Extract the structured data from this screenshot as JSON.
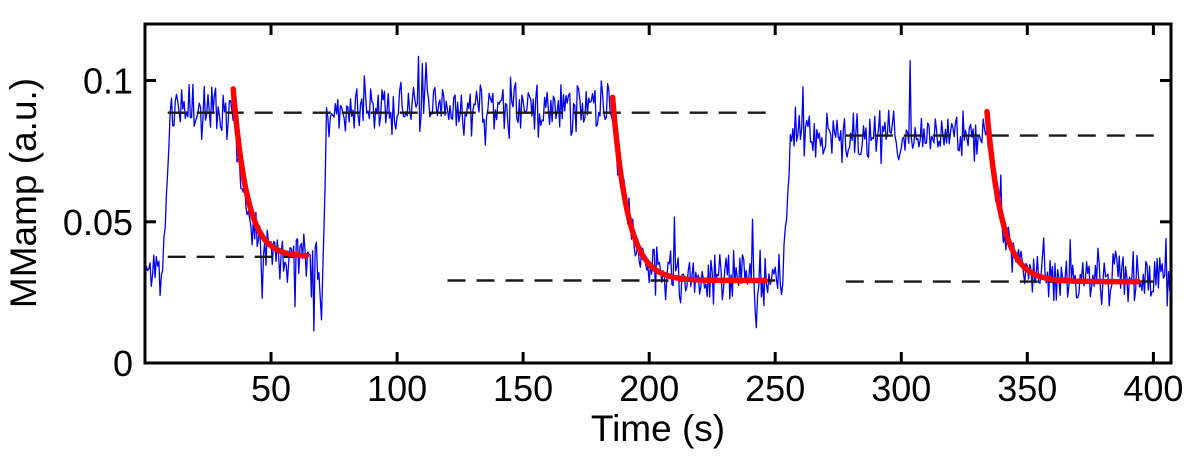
{
  "chart_data": {
    "type": "line",
    "title": "",
    "xlabel": "Time (s)",
    "ylabel": "MMamp (a.u.)",
    "xlim": [
      0,
      407
    ],
    "ylim": [
      0,
      0.12
    ],
    "xticks": [
      50,
      100,
      150,
      200,
      250,
      300,
      350,
      400
    ],
    "yticks": [
      0,
      0.05,
      0.1
    ],
    "ytick_labels": [
      "0",
      "0.05",
      "0.1"
    ],
    "grid": false,
    "legend": "none",
    "colors": {
      "signal": "#0000ee",
      "fit": "#ff0000",
      "dashed": "#1a1a1a",
      "axis": "#000000",
      "background": "#ffffff"
    },
    "signal": {
      "description": "Noisy measured MM amplitude trace: three high plateaus each followed by an exponential relaxation to baseline",
      "dt": 0.5,
      "noise_sd": 0.0045,
      "segments": [
        {
          "type": "flat",
          "t0": 0.5,
          "t1": 7,
          "level": 0.033
        },
        {
          "type": "ramp",
          "t0": 7,
          "t1": 10,
          "from": 0.033,
          "to": 0.086
        },
        {
          "type": "flat",
          "t0": 10,
          "t1": 34,
          "level": 0.09
        },
        {
          "type": "decay",
          "t0": 34,
          "t1": 69,
          "from": 0.0975,
          "asymptote": 0.038,
          "tau": 5.5
        },
        {
          "type": "flat",
          "t0": 69,
          "t1": 70.2,
          "level": 0.018
        },
        {
          "type": "ramp",
          "t0": 70.2,
          "t1": 72,
          "from": 0.018,
          "to": 0.088
        },
        {
          "type": "flat",
          "t0": 72,
          "t1": 185,
          "level": 0.09
        },
        {
          "type": "decay",
          "t0": 185,
          "t1": 253,
          "from": 0.0955,
          "asymptote": 0.03,
          "tau": 6
        },
        {
          "type": "ramp",
          "t0": 253,
          "t1": 256,
          "from": 0.03,
          "to": 0.078
        },
        {
          "type": "flat",
          "t0": 256,
          "t1": 334,
          "level": 0.08
        },
        {
          "type": "decay",
          "t0": 334,
          "t1": 407.5,
          "from": 0.089,
          "asymptote": 0.03,
          "tau": 6
        }
      ]
    },
    "fits": [
      {
        "name": "exponential-fit-1",
        "t_start": 35,
        "t_end": 64,
        "y0": 0.097,
        "asymptote": 0.0376,
        "tau": 5.5
      },
      {
        "name": "exponential-fit-2",
        "t_start": 185.5,
        "t_end": 246,
        "y0": 0.094,
        "asymptote": 0.0292,
        "tau": 6
      },
      {
        "name": "exponential-fit-3",
        "t_start": 334,
        "t_end": 394,
        "y0": 0.089,
        "asymptote": 0.0288,
        "tau": 6
      }
    ],
    "dashed_lines": [
      {
        "name": "plateau-level-1-2",
        "y": 0.0886,
        "t_start": 9,
        "t_end": 247
      },
      {
        "name": "baseline-level-1",
        "y": 0.0376,
        "t_start": 9,
        "t_end": 64
      },
      {
        "name": "baseline-level-2",
        "y": 0.0292,
        "t_start": 120,
        "t_end": 250
      },
      {
        "name": "plateau-level-3",
        "y": 0.0805,
        "t_start": 278,
        "t_end": 403
      },
      {
        "name": "baseline-level-3",
        "y": 0.0288,
        "t_start": 278,
        "t_end": 403
      }
    ]
  }
}
